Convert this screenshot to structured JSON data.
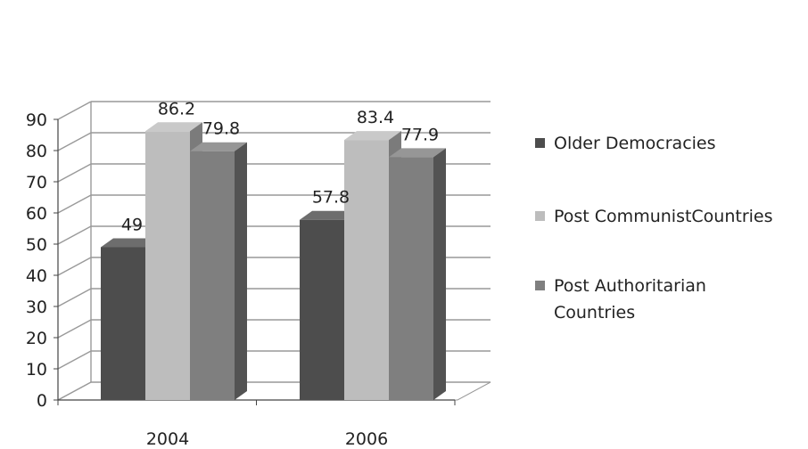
{
  "chart_data": {
    "type": "bar",
    "categories": [
      "2004",
      "2006"
    ],
    "series": [
      {
        "name": "Older Democracies",
        "values": [
          49,
          57.8
        ],
        "color": "#4d4d4d"
      },
      {
        "name": "Post CommunistCountries",
        "values": [
          86.2,
          83.4
        ],
        "color": "#bdbdbd"
      },
      {
        "name": "Post Authoritarian\nCountries",
        "values": [
          79.8,
          77.9
        ],
        "color": "#7f7f7f"
      }
    ],
    "data_labels": [
      [
        "49",
        "57.8"
      ],
      [
        "86.2",
        "83.4"
      ],
      [
        "79.8",
        "77.9"
      ]
    ],
    "y_ticks": [
      "0",
      "10",
      "20",
      "30",
      "40",
      "50",
      "60",
      "70",
      "80",
      "90"
    ],
    "ylim": [
      0,
      90
    ],
    "grid": true,
    "legend_position": "right",
    "style": "3d-clustered-column"
  }
}
